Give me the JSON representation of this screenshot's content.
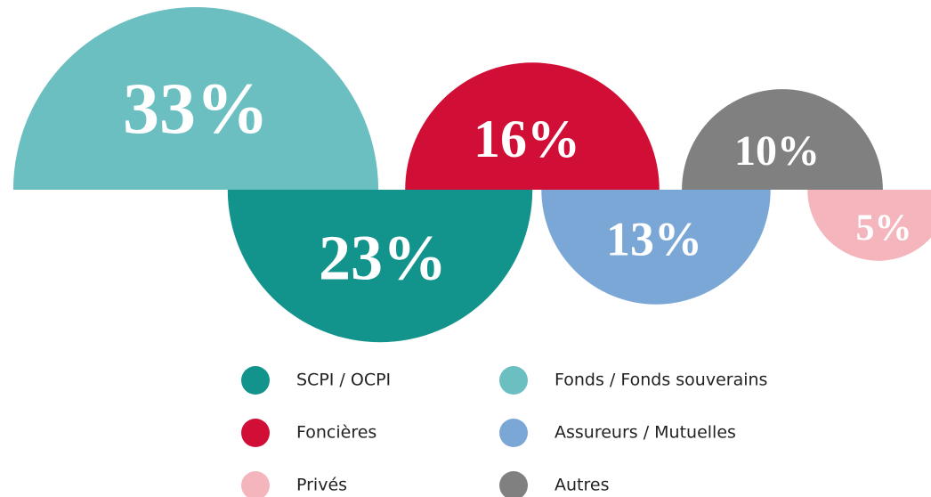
{
  "chart_data": {
    "type": "half-circles",
    "categories": [
      "SCPI / OCPI",
      "Fonds / Fonds souverains",
      "Foncières",
      "Assureurs / Mutuelles",
      "Privés",
      "Autres"
    ],
    "values": [
      23,
      33,
      16,
      13,
      5,
      10
    ],
    "value_labels": [
      "23%",
      "33%",
      "16%",
      "13%",
      "5%",
      "10%"
    ],
    "colors": [
      "#12948c",
      "#6bbfc0",
      "#d10e36",
      "#7ba7d7",
      "#f5b5bc",
      "#808080"
    ],
    "legend": "bottom"
  }
}
